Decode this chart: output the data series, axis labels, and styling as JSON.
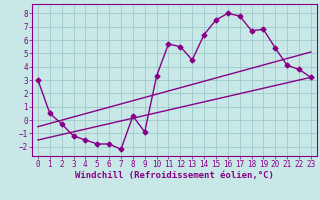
{
  "xlabel": "Windchill (Refroidissement éolien,°C)",
  "xlim": [
    -0.5,
    23.5
  ],
  "ylim": [
    -2.7,
    8.7
  ],
  "yticks": [
    -2,
    -1,
    0,
    1,
    2,
    3,
    4,
    5,
    6,
    7,
    8
  ],
  "xticks": [
    0,
    1,
    2,
    3,
    4,
    5,
    6,
    7,
    8,
    9,
    10,
    11,
    12,
    13,
    14,
    15,
    16,
    17,
    18,
    19,
    20,
    21,
    22,
    23
  ],
  "bg_color": "#c8e8e8",
  "grid_color": "#a0c8c8",
  "line_color": "#880088",
  "main_line_x": [
    0,
    1,
    2,
    3,
    4,
    5,
    6,
    7,
    8,
    9,
    10,
    11,
    12,
    13,
    14,
    15,
    16,
    17,
    18,
    19,
    20,
    21,
    22,
    23
  ],
  "main_line_y": [
    3.0,
    0.5,
    -0.3,
    -1.2,
    -1.5,
    -1.8,
    -1.8,
    -2.2,
    0.3,
    -0.9,
    3.3,
    5.7,
    5.5,
    4.5,
    6.4,
    7.5,
    8.0,
    7.8,
    6.7,
    6.8,
    5.4,
    4.1,
    3.8,
    3.2
  ],
  "ref_line1_x": [
    0,
    23
  ],
  "ref_line1_y": [
    -0.5,
    5.1
  ],
  "ref_line2_x": [
    0,
    23
  ],
  "ref_line2_y": [
    -1.5,
    3.2
  ],
  "marker": "D",
  "marker_size": 2.5,
  "line_width": 1.0,
  "tick_fontsize": 5.5,
  "xlabel_fontsize": 6.5,
  "tick_color": "#880088",
  "xlabel_color": "#880088",
  "spine_color": "#880088"
}
